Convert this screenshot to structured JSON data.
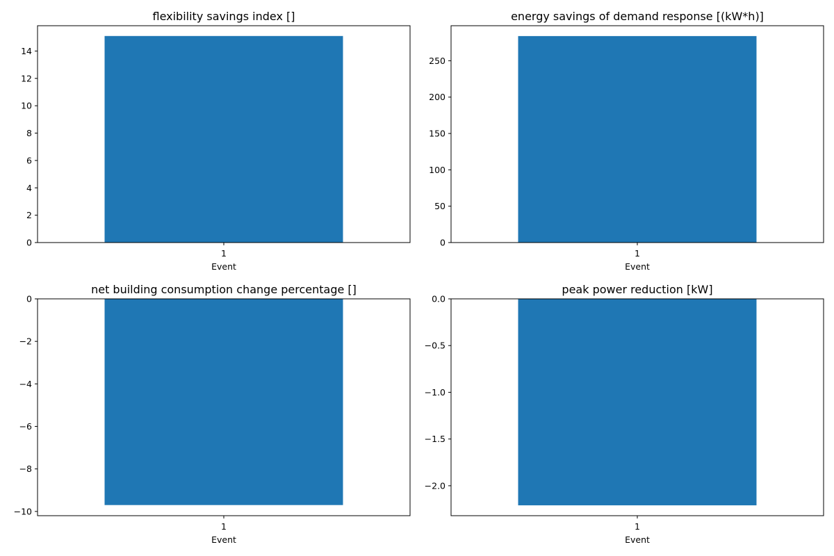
{
  "chart_data": [
    {
      "type": "bar",
      "title": "flexibility savings index []",
      "xlabel": "Event",
      "ylabel": "",
      "categories": [
        "1"
      ],
      "values": [
        15.1
      ],
      "ylim": [
        0,
        15.85
      ],
      "yticks": [
        0,
        2,
        4,
        6,
        8,
        10,
        12,
        14
      ],
      "color": "#1f77b4",
      "grid": false
    },
    {
      "type": "bar",
      "title": "energy savings of demand response [(kW*h)]",
      "xlabel": "Event",
      "ylabel": "",
      "categories": [
        "1"
      ],
      "values": [
        284
      ],
      "ylim": [
        0,
        298.2
      ],
      "yticks": [
        0,
        50,
        100,
        150,
        200,
        250
      ],
      "color": "#1f77b4",
      "grid": false
    },
    {
      "type": "bar",
      "title": "net building consumption change percentage []",
      "xlabel": "Event",
      "ylabel": "",
      "categories": [
        "1"
      ],
      "values": [
        -9.7
      ],
      "ylim": [
        -10.2,
        0
      ],
      "yticks": [
        0,
        -2,
        -4,
        -6,
        -8,
        -10
      ],
      "ytick_labels": [
        "0",
        "−2",
        "−4",
        "−6",
        "−8",
        "−10"
      ],
      "color": "#1f77b4",
      "grid": false
    },
    {
      "type": "bar",
      "title": "peak power reduction [kW]",
      "xlabel": "Event",
      "ylabel": "",
      "categories": [
        "1"
      ],
      "values": [
        -2.21
      ],
      "ylim": [
        -2.3205,
        0
      ],
      "yticks": [
        0,
        -0.5,
        -1,
        -1.5,
        -2
      ],
      "ytick_labels": [
        "0.0",
        "−0.5",
        "−1.0",
        "−1.5",
        "−2.0"
      ],
      "color": "#1f77b4",
      "grid": false
    }
  ]
}
